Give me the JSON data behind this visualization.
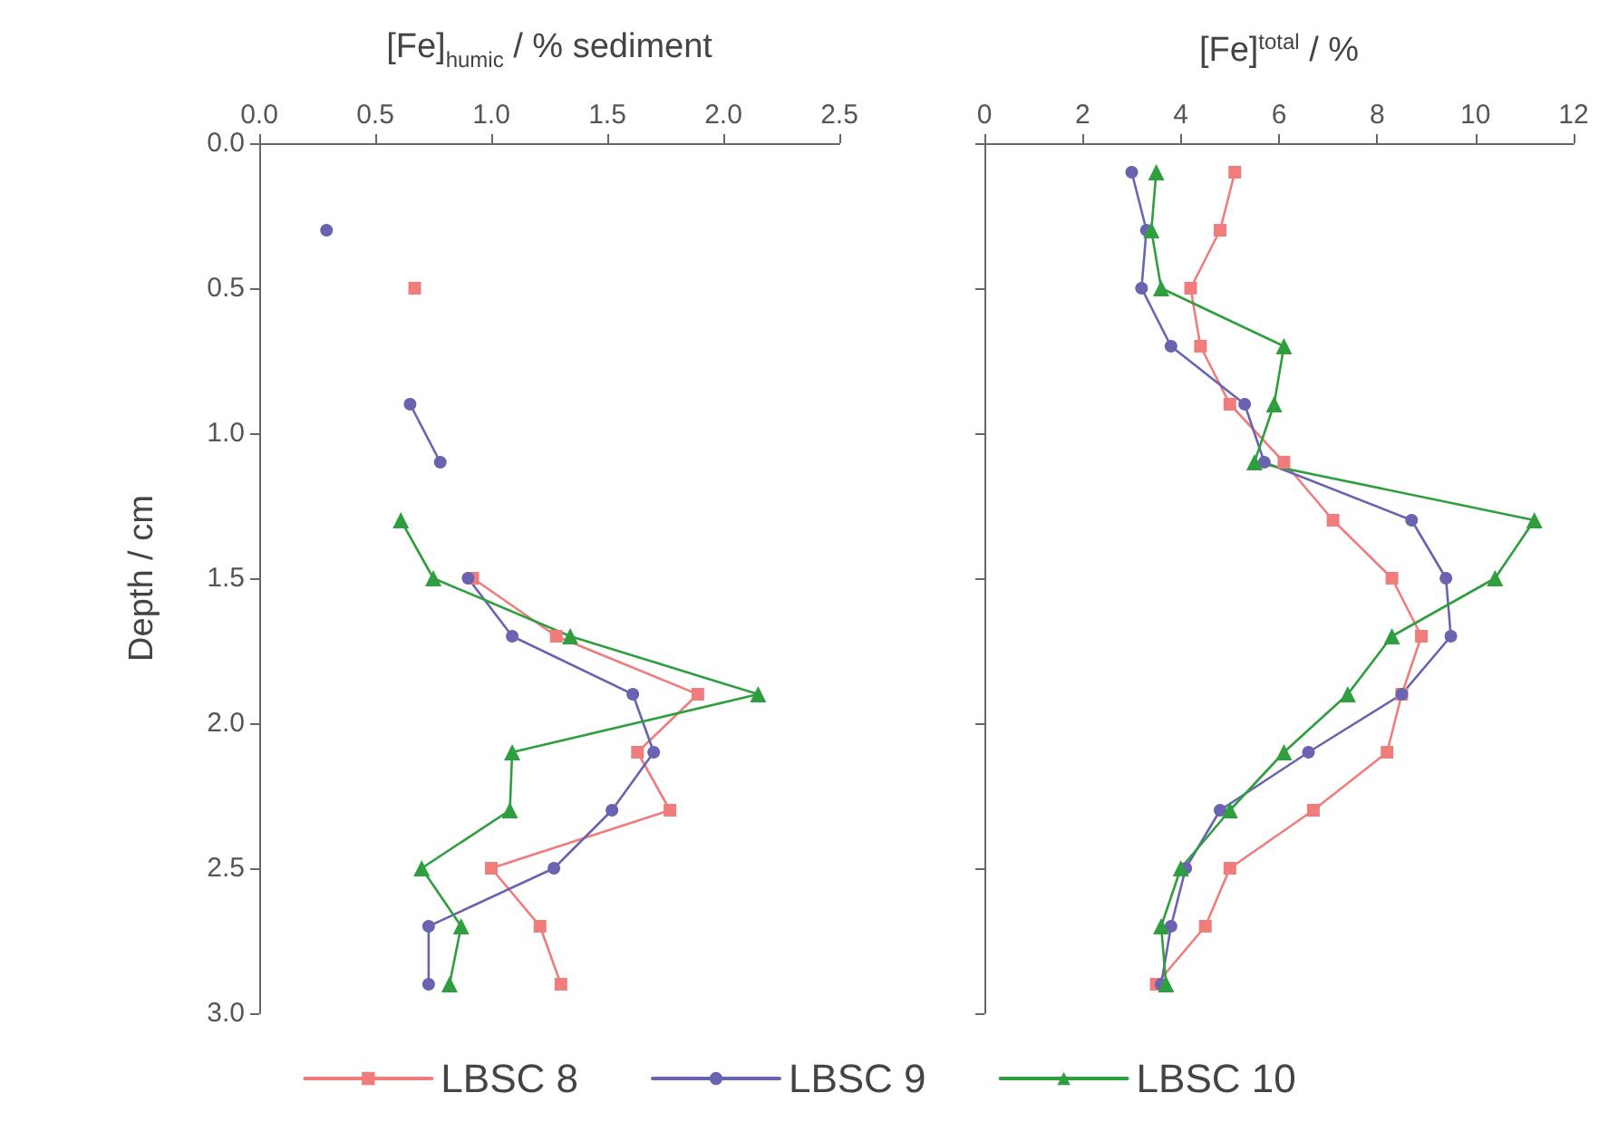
{
  "chart_data": [
    {
      "type": "line",
      "xlabel": "[Fe]$_{humic}$ / % sediment",
      "ylabel": "Depth / cm",
      "xlim": [
        0,
        2.5
      ],
      "xticks": [
        {
          "value": 0,
          "label": "0.0"
        },
        {
          "value": 0.5,
          "label": "0.5"
        },
        {
          "value": 1,
          "label": "1.0"
        },
        {
          "value": 1.5,
          "label": "1.5"
        },
        {
          "value": 2,
          "label": "2.0"
        },
        {
          "value": 2.5,
          "label": "2.5"
        }
      ],
      "ylim": [
        3,
        0
      ],
      "yticks": [
        {
          "value": 0,
          "label": "0.0"
        },
        {
          "value": 0.5,
          "label": "0.5"
        },
        {
          "value": 1,
          "label": "1.0"
        },
        {
          "value": 1.5,
          "label": "1.5"
        },
        {
          "value": 2,
          "label": "2.0"
        },
        {
          "value": 2.5,
          "label": "2.5"
        },
        {
          "value": 3,
          "label": "3.0"
        }
      ],
      "grid": false,
      "legend": "bottom",
      "series": [
        {
          "name": "LBSC 8",
          "color": "#f07c7c",
          "marker": "square",
          "x": [
            0.67,
            null,
            0.92,
            1.28,
            1.89,
            1.63,
            1.77,
            1.0,
            1.21,
            1.3
          ],
          "values": [
            0.5,
            null,
            1.5,
            1.7,
            1.9,
            2.1,
            2.3,
            2.5,
            2.7,
            2.9
          ]
        },
        {
          "name": "LBSC 9",
          "color": "#6a64b0",
          "marker": "circle",
          "x": [
            0.29,
            null,
            0.65,
            0.78,
            null,
            0.9,
            1.09,
            1.61,
            1.7,
            1.52,
            1.27,
            0.73,
            0.73
          ],
          "values": [
            0.3,
            null,
            0.9,
            1.1,
            null,
            1.5,
            1.7,
            1.9,
            2.1,
            2.3,
            2.5,
            2.7,
            2.9
          ]
        },
        {
          "name": "LBSC 10",
          "color": "#2e9e3e",
          "marker": "triangle",
          "x": [
            0.61,
            0.75,
            1.34,
            2.15,
            1.09,
            1.08,
            0.7,
            0.87,
            0.82
          ],
          "values": [
            1.3,
            1.5,
            1.7,
            1.9,
            2.1,
            2.3,
            2.5,
            2.7,
            2.9
          ]
        }
      ]
    },
    {
      "type": "line",
      "xlabel": "[Fe]$^{total}$ / %",
      "xlim": [
        0,
        12
      ],
      "xticks": [
        0,
        2,
        4,
        6,
        8,
        10,
        12
      ],
      "ylim": [
        3,
        0
      ],
      "yticks": [
        0,
        0.5,
        1,
        1.5,
        2,
        2.5,
        3
      ],
      "tick_labels": "x",
      "grid": false,
      "series": [
        {
          "color": "#f07c7c",
          "marker": "square",
          "x": [
            5.1,
            4.8,
            4.2,
            4.4,
            5.0,
            6.1,
            7.1,
            8.3,
            8.9,
            8.5,
            8.2,
            6.7,
            5.0,
            4.5,
            3.5
          ],
          "values": [
            0.1,
            0.3,
            0.5,
            0.7,
            0.9,
            1.1,
            1.3,
            1.5,
            1.7,
            1.9,
            2.1,
            2.3,
            2.5,
            2.7,
            2.9
          ]
        },
        {
          "color": "#6a64b0",
          "marker": "circle",
          "x": [
            3.0,
            3.3,
            3.2,
            3.8,
            5.3,
            5.7,
            8.7,
            9.4,
            9.5,
            8.5,
            6.6,
            4.8,
            4.1,
            3.8,
            3.6
          ],
          "values": [
            0.1,
            0.3,
            0.5,
            0.7,
            0.9,
            1.1,
            1.3,
            1.5,
            1.7,
            1.9,
            2.1,
            2.3,
            2.5,
            2.7,
            2.9
          ]
        },
        {
          "color": "#2e9e3e",
          "marker": "triangle",
          "x": [
            3.5,
            3.4,
            3.6,
            6.1,
            5.9,
            5.5,
            11.2,
            10.4,
            8.3,
            7.4,
            6.1,
            5.0,
            4.0,
            3.6,
            3.7
          ],
          "values": [
            0.1,
            0.3,
            0.5,
            0.7,
            0.9,
            1.1,
            1.3,
            1.5,
            1.7,
            1.9,
            2.1,
            2.3,
            2.5,
            2.7,
            2.9
          ]
        }
      ]
    }
  ]
}
